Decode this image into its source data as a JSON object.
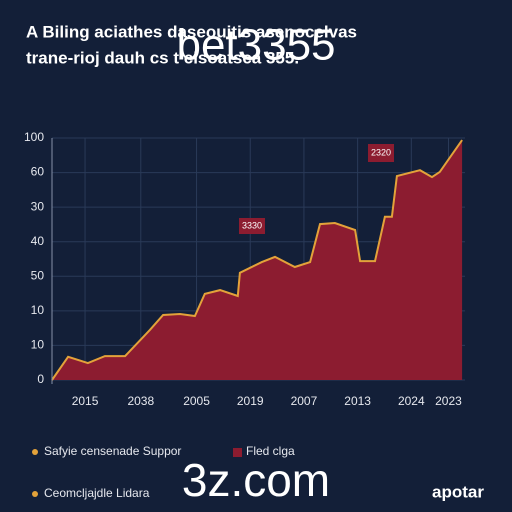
{
  "chart_data": {
    "type": "area",
    "title": "A Biling aciathes daseouitis asenocelvas",
    "subtitle": "trane-rioj dauh cs t cisoatsca 355.",
    "watermarks": [
      "bet3355",
      "3z.com"
    ],
    "brand": "apotar",
    "annotations": [
      "2320",
      "3330"
    ],
    "x": [
      0,
      3.9,
      8.7,
      12.8,
      17.7,
      23.7,
      26.9,
      31,
      34.6,
      37,
      40.7,
      45,
      45.5,
      50.8,
      54,
      58.8,
      62.5,
      64.9,
      68.5,
      73.4,
      74.6,
      78.2,
      80.6,
      82.3,
      83.5,
      89.1,
      92,
      93.9,
      99.3
    ],
    "series": [
      {
        "name": "Fled clga",
        "color": "#8c1c30",
        "line_color": "#e3a23a",
        "values": [
          0,
          0.67,
          0.49,
          0.69,
          0.69,
          1.45,
          1.88,
          1.91,
          1.85,
          2.49,
          2.6,
          2.43,
          3.1,
          3.41,
          3.56,
          3.27,
          3.41,
          4.51,
          4.54,
          4.34,
          3.44,
          3.44,
          4.72,
          4.72,
          5.9,
          6.07,
          5.87,
          6.02,
          6.94
        ]
      }
    ],
    "legend_extra": [
      {
        "name": "Safyie censenade Suppor",
        "color": "#e3a23a"
      },
      {
        "name": "Ceomcljajdle Lidara",
        "color": "#e3a23a"
      }
    ],
    "xlim": [
      0,
      100
    ],
    "xticks": [
      {
        "value": 8,
        "label": "2015"
      },
      {
        "value": 21.5,
        "label": "2038"
      },
      {
        "value": 35,
        "label": "2005"
      },
      {
        "value": 48,
        "label": "2019"
      },
      {
        "value": 61,
        "label": "2007"
      },
      {
        "value": 74,
        "label": "2013"
      },
      {
        "value": 87,
        "label": "2024"
      },
      {
        "value": 96,
        "label": "2023"
      }
    ],
    "ylim": [
      0,
      7
    ],
    "yticks": [
      0,
      {
        "value": 1,
        "label": "10"
      },
      {
        "value": 2,
        "label": "10"
      },
      {
        "value": 3,
        "label": "50"
      },
      {
        "value": 4,
        "label": "40"
      },
      {
        "value": 5,
        "label": "30"
      },
      {
        "value": 6,
        "label": "60"
      },
      {
        "value": 7,
        "label": "100"
      }
    ],
    "grid": true
  }
}
